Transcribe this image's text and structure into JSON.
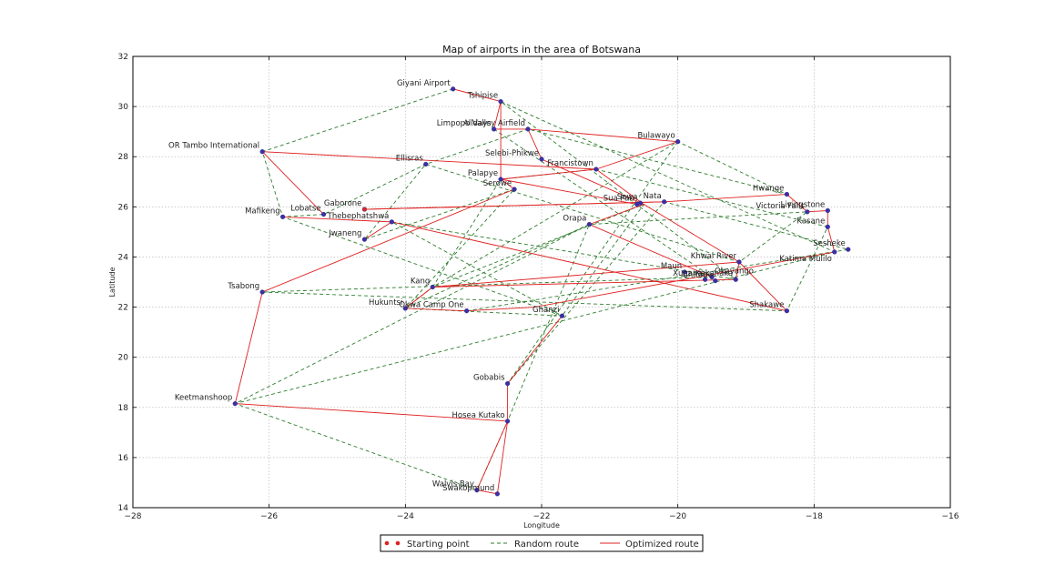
{
  "chart_data": {
    "type": "scatter",
    "title": "Map of airports in the area of Botswana",
    "xlabel": "Longitude",
    "ylabel": "Latitude",
    "xlim": [
      -28,
      -16
    ],
    "ylim": [
      14,
      32
    ],
    "xticks": [
      -28,
      -26,
      -24,
      -22,
      -20,
      -18,
      -16
    ],
    "yticks": [
      14,
      16,
      18,
      20,
      22,
      24,
      26,
      28,
      30,
      32
    ],
    "grid": true,
    "legend_position": "bottom-center",
    "legend": {
      "start_label": "Starting point",
      "random_label": "Random route",
      "optimized_label": "Optimized route"
    },
    "colors": {
      "point": "#3b2fa8",
      "start_point": "#dd2222",
      "random_route": "#2e7d2e",
      "optimized_route": "#e02020"
    },
    "airports": [
      {
        "name": "Giyani Airport",
        "x": -23.3,
        "y": 30.7,
        "label_pos": "above-left"
      },
      {
        "name": "Tshipise",
        "x": -22.6,
        "y": 30.2,
        "label_pos": "above-left"
      },
      {
        "name": "Alldays",
        "x": -22.7,
        "y": 29.1,
        "label_pos": "above-left"
      },
      {
        "name": "Limpopo Valley Airfield",
        "x": -22.2,
        "y": 29.1,
        "label_pos": "above-left"
      },
      {
        "name": "Bulawayo",
        "x": -20.0,
        "y": 28.6,
        "label_pos": "above-left"
      },
      {
        "name": "OR Tambo International",
        "x": -26.1,
        "y": 28.2,
        "label_pos": "above-left"
      },
      {
        "name": "Selebi-Phikwe",
        "x": -22.0,
        "y": 27.9,
        "label_pos": "above-left"
      },
      {
        "name": "Ellisras",
        "x": -23.7,
        "y": 27.7,
        "label_pos": "above-left"
      },
      {
        "name": "Francistown",
        "x": -21.2,
        "y": 27.5,
        "label_pos": "above-left"
      },
      {
        "name": "Palapye",
        "x": -22.6,
        "y": 27.1,
        "label_pos": "above-left"
      },
      {
        "name": "Serowe",
        "x": -22.4,
        "y": 26.7,
        "label_pos": "above-left"
      },
      {
        "name": "Sua Pan",
        "x": -20.6,
        "y": 26.1,
        "label_pos": "above-left"
      },
      {
        "name": "Sowa",
        "x": -20.55,
        "y": 26.15,
        "label_pos": "above-left"
      },
      {
        "name": "Nata",
        "x": -20.2,
        "y": 26.2,
        "label_pos": "above-left"
      },
      {
        "name": "Hwange",
        "x": -18.4,
        "y": 26.5,
        "label_pos": "above-left"
      },
      {
        "name": "Victoria Falls",
        "x": -18.1,
        "y": 25.8,
        "label_pos": "above-left"
      },
      {
        "name": "Livingstone",
        "x": -17.8,
        "y": 25.85,
        "label_pos": "above-left"
      },
      {
        "name": "Kasane",
        "x": -17.8,
        "y": 25.2,
        "label_pos": "above-left"
      },
      {
        "name": "Gaborone",
        "x": -24.6,
        "y": 25.9,
        "label_pos": "above-left"
      },
      {
        "name": "Lobatse",
        "x": -25.2,
        "y": 25.7,
        "label_pos": "above-left"
      },
      {
        "name": "Mafikeng",
        "x": -25.8,
        "y": 25.6,
        "label_pos": "above-left"
      },
      {
        "name": "Thebephatshwa",
        "x": -24.2,
        "y": 25.4,
        "label_pos": "above-left"
      },
      {
        "name": "Orapa",
        "x": -21.3,
        "y": 25.3,
        "label_pos": "above-left"
      },
      {
        "name": "Jwaneng",
        "x": -24.6,
        "y": 24.7,
        "label_pos": "above-left"
      },
      {
        "name": "Sesheke",
        "x": -17.5,
        "y": 24.3,
        "label_pos": "above-left"
      },
      {
        "name": "Katima Mulilo",
        "x": -17.7,
        "y": 24.2,
        "label_pos": "below-left"
      },
      {
        "name": "Khwai River",
        "x": -19.1,
        "y": 23.8,
        "label_pos": "above-left"
      },
      {
        "name": "Maun",
        "x": -19.9,
        "y": 23.4,
        "label_pos": "above-left"
      },
      {
        "name": "Xakanaka",
        "x": -19.15,
        "y": 23.1,
        "label_pos": "above-left"
      },
      {
        "name": "Chitabe",
        "x": -19.45,
        "y": 23.05,
        "label_pos": "above-left"
      },
      {
        "name": "Xugana",
        "x": -19.6,
        "y": 23.1,
        "label_pos": "above-left"
      },
      {
        "name": "Okavango",
        "x": -19.5,
        "y": 23.2,
        "label_pos": "above-right"
      },
      {
        "name": "Kang",
        "x": -23.6,
        "y": 22.8,
        "label_pos": "above-left"
      },
      {
        "name": "Tsabong",
        "x": -26.1,
        "y": 22.6,
        "label_pos": "above-left"
      },
      {
        "name": "Hukuntsi",
        "x": -24.0,
        "y": 21.95,
        "label_pos": "above-left"
      },
      {
        "name": "Okwa Camp One",
        "x": -23.1,
        "y": 21.85,
        "label_pos": "above-left"
      },
      {
        "name": "Shakawe",
        "x": -18.4,
        "y": 21.85,
        "label_pos": "above-left"
      },
      {
        "name": "Ghanzi",
        "x": -21.7,
        "y": 21.65,
        "label_pos": "above-left"
      },
      {
        "name": "Gobabis",
        "x": -22.5,
        "y": 18.95,
        "label_pos": "above-left"
      },
      {
        "name": "Keetmanshoop",
        "x": -26.5,
        "y": 18.15,
        "label_pos": "above-left"
      },
      {
        "name": "Hosea Kutako",
        "x": -22.5,
        "y": 17.45,
        "label_pos": "above-left"
      },
      {
        "name": "Walvis Bay",
        "x": -22.95,
        "y": 14.7,
        "label_pos": "above-left"
      },
      {
        "name": "Swakopmund",
        "x": -22.65,
        "y": 14.55,
        "label_pos": "above-left"
      }
    ],
    "optimized_route": [
      [
        -24.6,
        25.9
      ],
      [
        -20.2,
        26.2
      ],
      [
        -18.4,
        26.5
      ],
      [
        -18.1,
        25.8
      ],
      [
        -17.8,
        25.85
      ],
      [
        -17.8,
        25.2
      ],
      [
        -17.7,
        24.2
      ],
      [
        -22.1,
        22.0
      ],
      [
        -23.1,
        21.85
      ],
      [
        -24.0,
        21.95
      ],
      [
        -23.6,
        22.8
      ],
      [
        -19.1,
        23.8
      ],
      [
        -19.15,
        23.1
      ],
      [
        -23.6,
        22.8
      ]
    ],
    "optimized_route_b": [
      [
        -24.6,
        25.9
      ],
      [
        -20.2,
        26.2
      ]
    ],
    "optimized_route_c": [
      [
        -24.2,
        25.4
      ],
      [
        -18.4,
        21.85
      ],
      [
        -19.1,
        23.8
      ],
      [
        -20.5,
        26.1
      ],
      [
        -21.2,
        27.5
      ],
      [
        -20.0,
        28.6
      ]
    ],
    "optimized_route_d": [
      [
        -23.3,
        30.7
      ],
      [
        -22.6,
        30.2
      ],
      [
        -22.7,
        29.1
      ],
      [
        -22.2,
        29.1
      ],
      [
        -20.0,
        28.6
      ]
    ],
    "optimized_route_e": [
      [
        -26.1,
        28.2
      ],
      [
        -21.2,
        27.5
      ],
      [
        -22.6,
        27.1
      ],
      [
        -20.6,
        26.1
      ]
    ],
    "optimized_route_f": [
      [
        -25.8,
        25.6
      ],
      [
        -24.2,
        25.4
      ],
      [
        -24.6,
        24.7
      ]
    ],
    "optimized_route_g": [
      [
        -22.4,
        26.7
      ],
      [
        -26.1,
        22.6
      ],
      [
        -26.5,
        18.15
      ],
      [
        -22.5,
        17.45
      ],
      [
        -22.65,
        14.55
      ],
      [
        -22.95,
        14.7
      ],
      [
        -22.5,
        17.45
      ],
      [
        -22.5,
        18.95
      ],
      [
        -21.7,
        21.65
      ]
    ],
    "optimized_route_h": [
      [
        -22.6,
        30.2
      ],
      [
        -22.6,
        27.1
      ],
      [
        -22.4,
        26.7
      ]
    ],
    "optimized_route_i": [
      [
        -22.2,
        29.1
      ],
      [
        -22.0,
        27.9
      ],
      [
        -20.5,
        26.1
      ],
      [
        -21.3,
        25.3
      ],
      [
        -19.5,
        23.2
      ]
    ],
    "optimized_route_j": [
      [
        -25.2,
        25.7
      ],
      [
        -26.1,
        28.2
      ]
    ],
    "random_route": [
      [
        -23.3,
        30.7
      ],
      [
        -26.1,
        28.2
      ],
      [
        -25.8,
        25.6
      ],
      [
        -25.2,
        25.7
      ],
      [
        -23.7,
        27.7
      ],
      [
        -22.2,
        29.1
      ],
      [
        -18.4,
        26.5
      ],
      [
        -20.0,
        28.6
      ],
      [
        -23.6,
        22.8
      ],
      [
        -24.0,
        21.95
      ],
      [
        -22.4,
        26.7
      ],
      [
        -24.6,
        24.7
      ],
      [
        -23.7,
        27.7
      ],
      [
        -19.1,
        23.8
      ],
      [
        -18.1,
        25.8
      ],
      [
        -21.3,
        25.3
      ],
      [
        -24.0,
        21.95
      ],
      [
        -21.7,
        21.65
      ],
      [
        -24.2,
        25.4
      ],
      [
        -19.15,
        23.1
      ],
      [
        -22.6,
        30.2
      ],
      [
        -17.7,
        24.2
      ],
      [
        -26.5,
        18.15
      ],
      [
        -21.3,
        25.3
      ],
      [
        -22.5,
        17.45
      ],
      [
        -22.95,
        14.7
      ],
      [
        -26.5,
        18.15
      ]
    ],
    "random_route_b": [
      [
        -26.1,
        22.6
      ],
      [
        -18.4,
        21.85
      ],
      [
        -17.8,
        25.2
      ],
      [
        -21.2,
        27.5
      ],
      [
        -22.6,
        27.1
      ],
      [
        -23.6,
        22.8
      ],
      [
        -20.5,
        26.1
      ],
      [
        -21.7,
        21.65
      ],
      [
        -25.8,
        25.6
      ]
    ],
    "random_route_c": [
      [
        -23.1,
        21.85
      ],
      [
        -17.5,
        24.3
      ],
      [
        -20.2,
        26.2
      ],
      [
        -22.5,
        18.95
      ],
      [
        -20.0,
        28.6
      ]
    ],
    "random_route_d": [
      [
        -22.7,
        29.1
      ],
      [
        -19.5,
        23.2
      ],
      [
        -26.1,
        22.6
      ]
    ]
  }
}
